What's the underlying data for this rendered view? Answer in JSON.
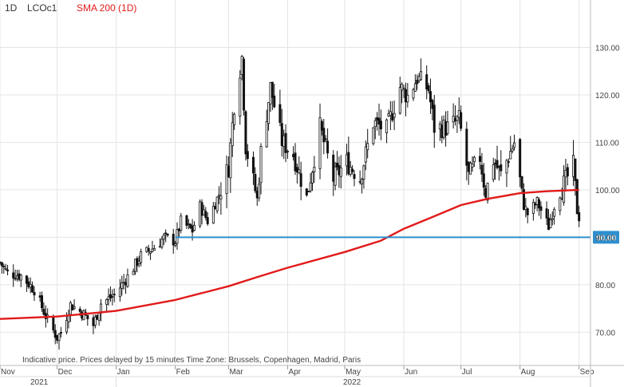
{
  "header": {
    "interval": "1D",
    "symbol": "LCOc1",
    "indicator": "SMA 200  (1D)"
  },
  "notice": "Indicative price. Prices delayed by 15 minutes    Time Zone: Brussels, Copenhagen, Madrid, Paris",
  "colors": {
    "candle": "#111111",
    "sma": "#e21a1a",
    "level_line": "#2f8fce",
    "level_tag_bg": "#2f8fce",
    "grid": "#e4e4e4"
  },
  "chart_data": {
    "type": "candlestick",
    "ylim": [
      63,
      140
    ],
    "y_ticks": [
      "70.00",
      "80.00",
      "90.00",
      "100.00",
      "110.00",
      "120.00",
      "130.00"
    ],
    "x_ticks": [
      "Nov",
      "Dec",
      "Jan",
      "Feb",
      "Mar",
      "Apr",
      "May",
      "Jun",
      "Jul",
      "Aug",
      "Sep"
    ],
    "year_labels": [
      "2021",
      "2022"
    ],
    "grid": true,
    "horizontal_level": {
      "value": 90.0,
      "label": "90.00",
      "start_date": "2022-02-01"
    },
    "price_close_points": [
      [
        "2021-11-01",
        84.7
      ],
      [
        "2021-11-05",
        82.5
      ],
      [
        "2021-11-12",
        81.9
      ],
      [
        "2021-11-19",
        79.0
      ],
      [
        "2021-11-26",
        72.5
      ],
      [
        "2021-12-01",
        68.9
      ],
      [
        "2021-12-03",
        69.9
      ],
      [
        "2021-12-08",
        75.8
      ],
      [
        "2021-12-15",
        73.8
      ],
      [
        "2021-12-20",
        71.5
      ],
      [
        "2021-12-24",
        76.1
      ],
      [
        "2021-12-31",
        77.8
      ],
      [
        "2022-01-07",
        81.7
      ],
      [
        "2022-01-14",
        86.1
      ],
      [
        "2022-01-21",
        87.9
      ],
      [
        "2022-01-26",
        89.9
      ],
      [
        "2022-02-01",
        89.2
      ],
      [
        "2022-02-04",
        93.3
      ],
      [
        "2022-02-10",
        91.4
      ],
      [
        "2022-02-14",
        96.5
      ],
      [
        "2022-02-18",
        93.5
      ],
      [
        "2022-02-24",
        99.1
      ],
      [
        "2022-03-01",
        104.9
      ],
      [
        "2022-03-04",
        118.1
      ],
      [
        "2022-03-08",
        128.0
      ],
      [
        "2022-03-10",
        109.3
      ],
      [
        "2022-03-16",
        98.0
      ],
      [
        "2022-03-18",
        107.9
      ],
      [
        "2022-03-23",
        121.6
      ],
      [
        "2022-03-29",
        110.2
      ],
      [
        "2022-04-04",
        107.5
      ],
      [
        "2022-04-11",
        98.5
      ],
      [
        "2022-04-18",
        113.2
      ],
      [
        "2022-04-25",
        102.3
      ],
      [
        "2022-05-02",
        105.9
      ],
      [
        "2022-05-09",
        102.5
      ],
      [
        "2022-05-16",
        114.2
      ],
      [
        "2022-05-23",
        112.6
      ],
      [
        "2022-05-30",
        121.7
      ],
      [
        "2022-06-03",
        119.7
      ],
      [
        "2022-06-08",
        123.6
      ],
      [
        "2022-06-14",
        121.2
      ],
      [
        "2022-06-17",
        113.1
      ],
      [
        "2022-06-24",
        113.1
      ],
      [
        "2022-06-30",
        114.8
      ],
      [
        "2022-07-05",
        102.8
      ],
      [
        "2022-07-11",
        106.9
      ],
      [
        "2022-07-14",
        99.1
      ],
      [
        "2022-07-18",
        106.3
      ],
      [
        "2022-07-22",
        103.2
      ],
      [
        "2022-07-29",
        110.0
      ],
      [
        "2022-08-03",
        96.8
      ],
      [
        "2022-08-05",
        94.9
      ],
      [
        "2022-08-10",
        97.4
      ],
      [
        "2022-08-16",
        92.3
      ],
      [
        "2022-08-19",
        96.7
      ],
      [
        "2022-08-24",
        101.2
      ],
      [
        "2022-08-29",
        105.1
      ],
      [
        "2022-08-31",
        95.6
      ],
      [
        "2022-09-02",
        93.0
      ]
    ],
    "sma_points": [
      [
        "2021-11-01",
        72.8
      ],
      [
        "2021-12-01",
        73.3
      ],
      [
        "2022-01-01",
        74.5
      ],
      [
        "2022-02-01",
        76.8
      ],
      [
        "2022-03-01",
        79.7
      ],
      [
        "2022-03-15",
        81.5
      ],
      [
        "2022-04-01",
        83.6
      ],
      [
        "2022-05-01",
        86.9
      ],
      [
        "2022-05-20",
        89.3
      ],
      [
        "2022-06-01",
        91.8
      ],
      [
        "2022-06-15",
        94.1
      ],
      [
        "2022-07-01",
        96.8
      ],
      [
        "2022-07-15",
        98.1
      ],
      [
        "2022-08-01",
        99.3
      ],
      [
        "2022-08-15",
        99.7
      ],
      [
        "2022-09-01",
        100.0
      ]
    ]
  }
}
